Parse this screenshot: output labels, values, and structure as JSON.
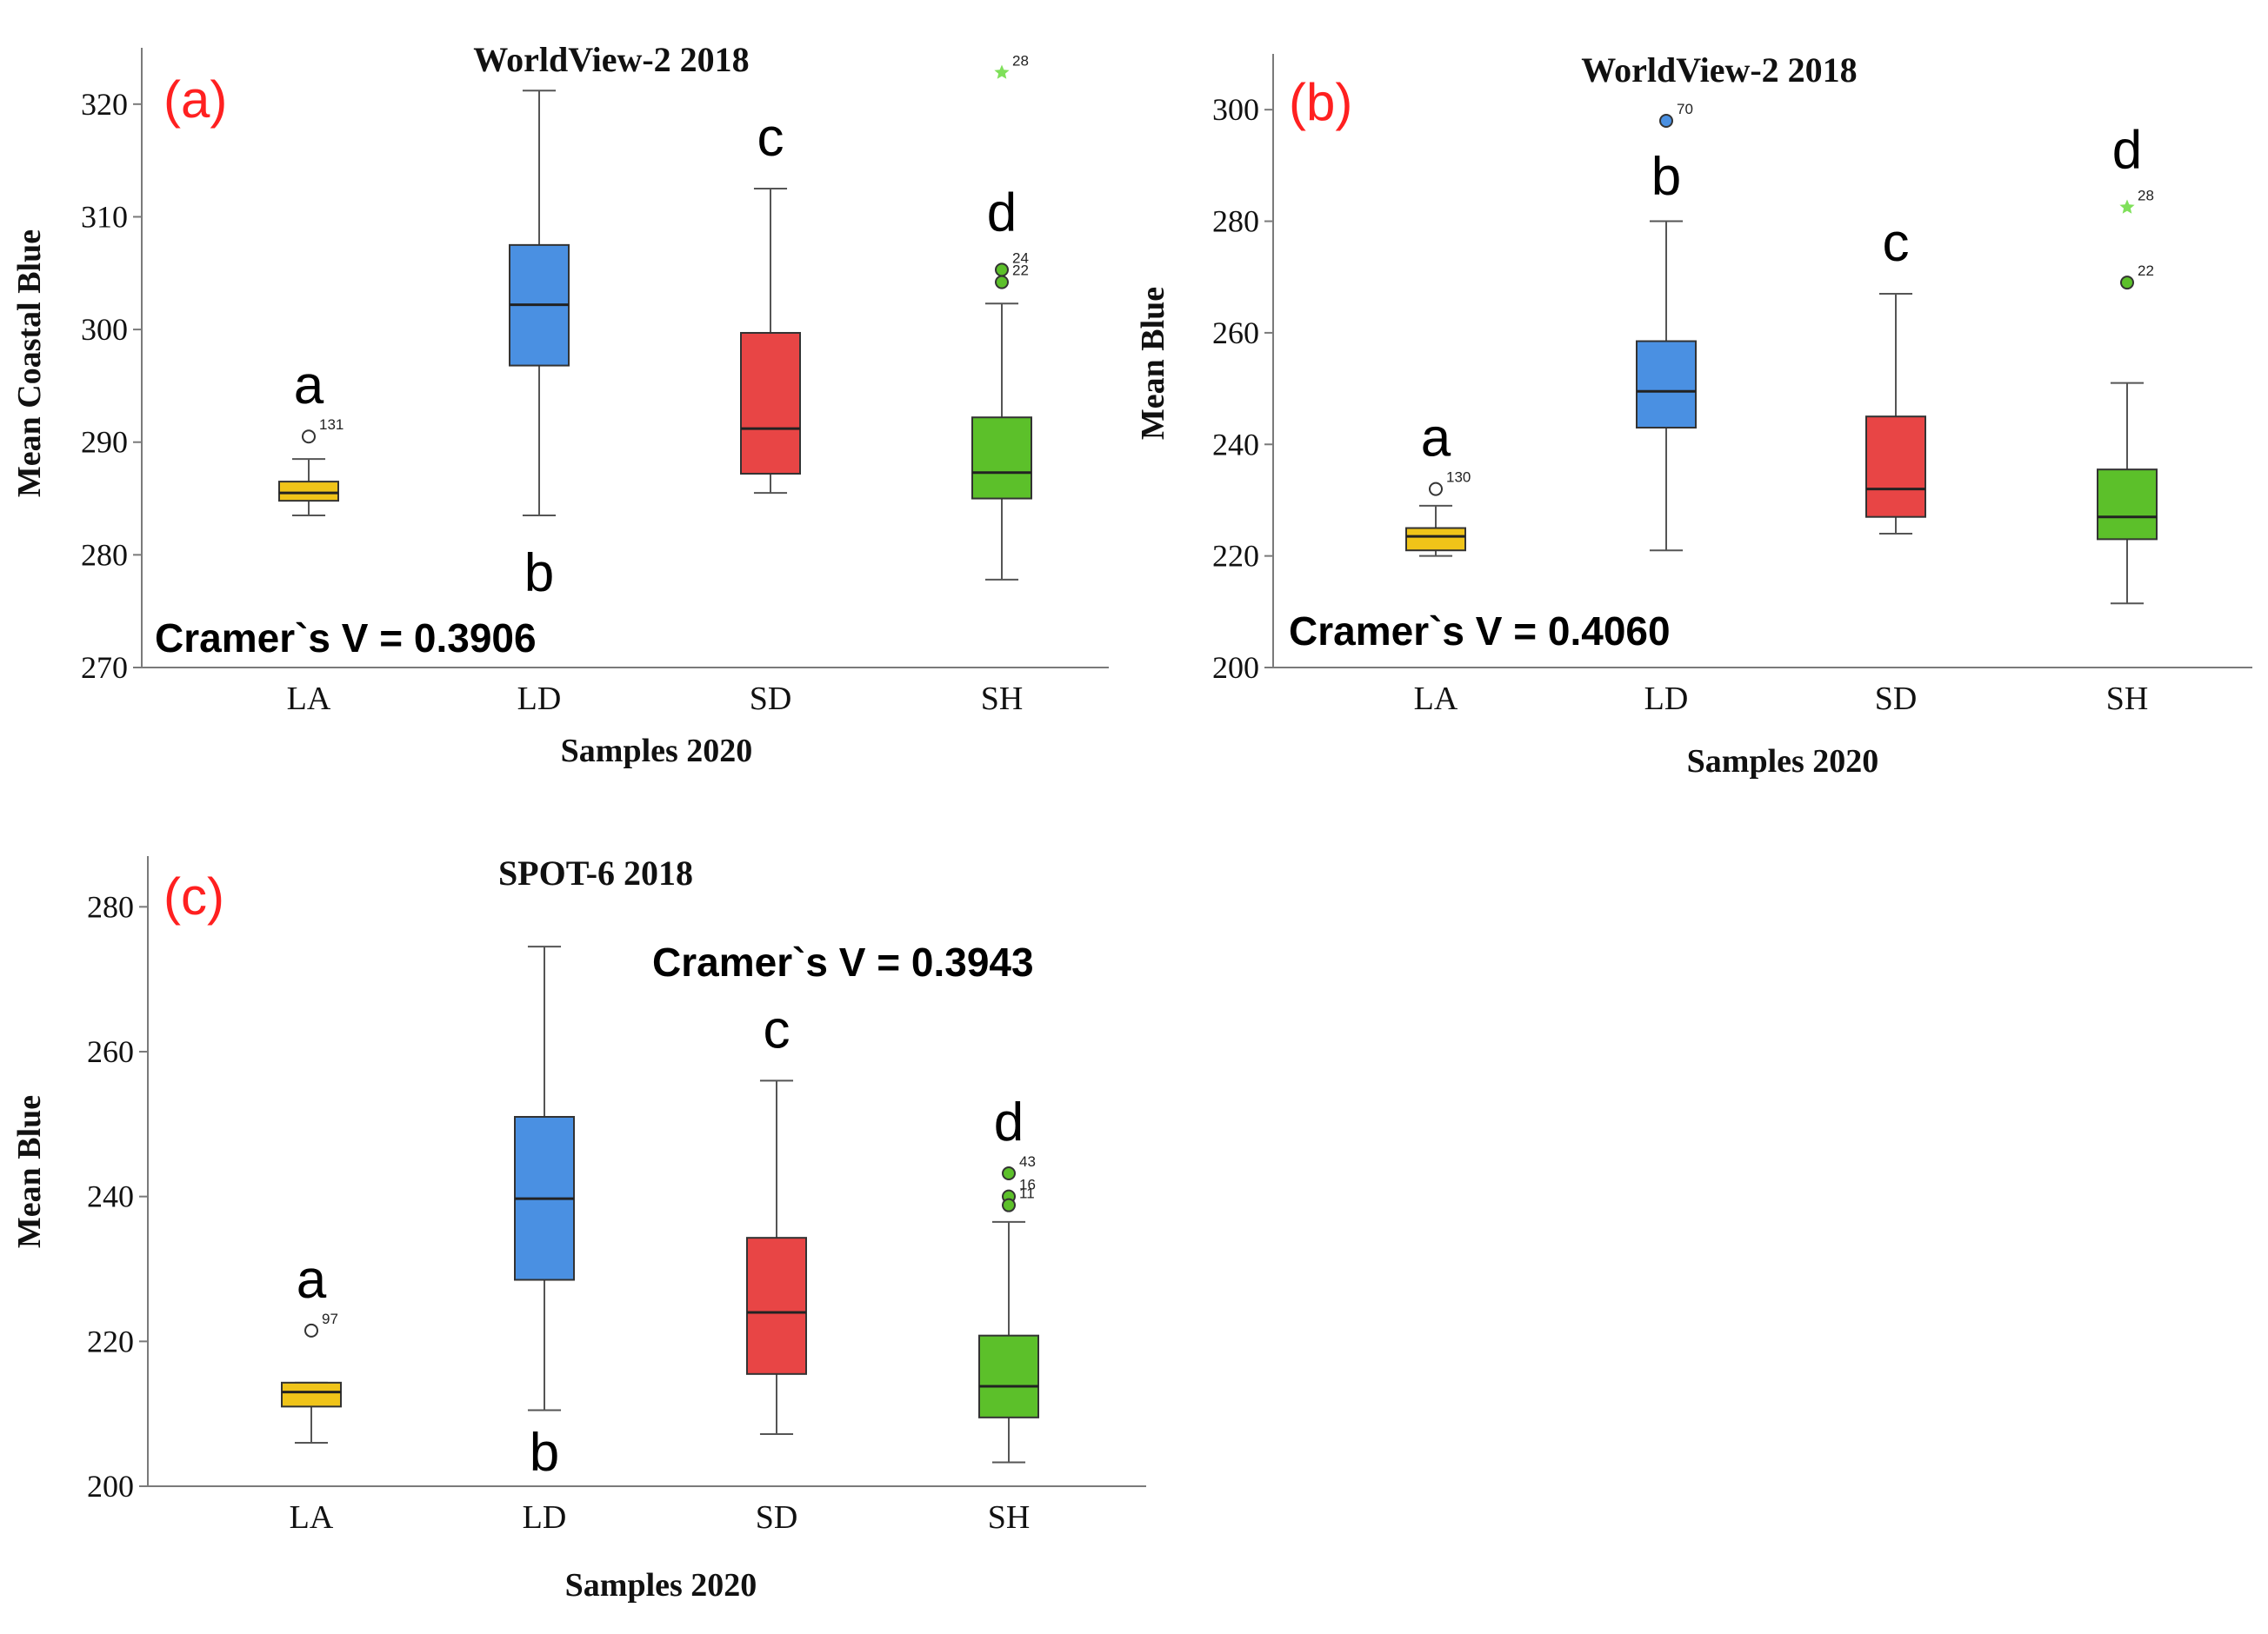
{
  "figure": {
    "colors": {
      "LA": "#f0c419",
      "LD": "#4a90e2",
      "SD": "#e84545",
      "SH": "#5cc02a",
      "axis": "#7a7a7a",
      "whisker": "#555555",
      "median": "#222222",
      "panel_label": "#ff2020",
      "text": "#111111"
    }
  },
  "chart_data": [
    {
      "type": "boxplot",
      "panel_label": "(a)",
      "title": "WorldView-2 2018",
      "xlabel": "Samples 2020",
      "ylabel": "Mean Coastal Blue",
      "ylim": [
        270,
        325
      ],
      "yticks": [
        270,
        280,
        290,
        300,
        310,
        320
      ],
      "categories": [
        "LA",
        "LD",
        "SD",
        "SH"
      ],
      "boxes": [
        {
          "category": "LA",
          "min": 283.5,
          "q1": 284.8,
          "median": 285.5,
          "q3": 286.5,
          "max": 288.5
        },
        {
          "category": "LD",
          "min": 283.5,
          "q1": 296.8,
          "median": 302.2,
          "q3": 307.5,
          "max": 321.2
        },
        {
          "category": "SD",
          "min": 285.5,
          "q1": 287.2,
          "median": 291.2,
          "q3": 299.7,
          "max": 312.5
        },
        {
          "category": "SH",
          "min": 277.8,
          "q1": 285.0,
          "median": 287.3,
          "q3": 292.2,
          "max": 302.3
        }
      ],
      "outliers": [
        {
          "category": "LA",
          "value": 290.5,
          "label": "131",
          "marker": "circle"
        },
        {
          "category": "SH",
          "value": 305.3,
          "label": "24",
          "marker": "circle"
        },
        {
          "category": "SH",
          "value": 304.2,
          "label": "22",
          "marker": "circle"
        },
        {
          "category": "SH",
          "value": 322.8,
          "label": "28",
          "marker": "star"
        }
      ],
      "group_letters": [
        {
          "category": "LA",
          "letter": "a",
          "position": "above"
        },
        {
          "category": "LD",
          "letter": "b",
          "position": "below"
        },
        {
          "category": "SD",
          "letter": "c",
          "position": "above"
        },
        {
          "category": "SH",
          "letter": "d",
          "position": "above"
        }
      ],
      "annotation": "Cramer`s V = 0.3906"
    },
    {
      "type": "boxplot",
      "panel_label": "(b)",
      "title": "WorldView-2 2018",
      "xlabel": "Samples 2020",
      "ylabel": "Mean Blue",
      "ylim": [
        200,
        310
      ],
      "yticks": [
        200,
        220,
        240,
        260,
        280,
        300
      ],
      "categories": [
        "LA",
        "LD",
        "SD",
        "SH"
      ],
      "boxes": [
        {
          "category": "LA",
          "min": 220,
          "q1": 221,
          "median": 223.5,
          "q3": 225,
          "max": 229
        },
        {
          "category": "LD",
          "min": 221,
          "q1": 243,
          "median": 249.5,
          "q3": 258.5,
          "max": 280
        },
        {
          "category": "SD",
          "min": 224,
          "q1": 227,
          "median": 232,
          "q3": 245,
          "max": 267
        },
        {
          "category": "SH",
          "min": 211.5,
          "q1": 223,
          "median": 227,
          "q3": 235.5,
          "max": 251
        }
      ],
      "outliers": [
        {
          "category": "LA",
          "value": 232,
          "label": "130",
          "marker": "circle"
        },
        {
          "category": "LD",
          "value": 298,
          "label": "70",
          "marker": "circle"
        },
        {
          "category": "SH",
          "value": 269,
          "label": "22",
          "marker": "circle"
        },
        {
          "category": "SH",
          "value": 282.5,
          "label": "28",
          "marker": "star"
        }
      ],
      "group_letters": [
        {
          "category": "LA",
          "letter": "a",
          "position": "above"
        },
        {
          "category": "LD",
          "letter": "b",
          "position": "above"
        },
        {
          "category": "SD",
          "letter": "c",
          "position": "above"
        },
        {
          "category": "SH",
          "letter": "d",
          "position": "above"
        }
      ],
      "annotation": "Cramer`s V = 0.4060"
    },
    {
      "type": "boxplot",
      "panel_label": "(c)",
      "title": "SPOT-6 2018",
      "xlabel": "Samples 2020",
      "ylabel": "Mean Blue",
      "ylim": [
        200,
        287
      ],
      "yticks": [
        200,
        220,
        240,
        260,
        280
      ],
      "categories": [
        "LA",
        "LD",
        "SD",
        "SH"
      ],
      "boxes": [
        {
          "category": "LA",
          "min": 206,
          "q1": 211,
          "median": 213,
          "q3": 214.3,
          "max": 214.3
        },
        {
          "category": "LD",
          "min": 210.5,
          "q1": 228.5,
          "median": 239.7,
          "q3": 251,
          "max": 274.5
        },
        {
          "category": "SD",
          "min": 207.2,
          "q1": 215.5,
          "median": 224,
          "q3": 234.3,
          "max": 256
        },
        {
          "category": "SH",
          "min": 203.3,
          "q1": 209.5,
          "median": 213.8,
          "q3": 220.8,
          "max": 236.5
        }
      ],
      "outliers": [
        {
          "category": "LA",
          "value": 221.5,
          "label": "97",
          "marker": "circle"
        },
        {
          "category": "SH",
          "value": 243.2,
          "label": "43",
          "marker": "circle"
        },
        {
          "category": "SH",
          "value": 240.0,
          "label": "16",
          "marker": "circle"
        },
        {
          "category": "SH",
          "value": 238.8,
          "label": "11",
          "marker": "circle"
        }
      ],
      "group_letters": [
        {
          "category": "LA",
          "letter": "a",
          "position": "above"
        },
        {
          "category": "LD",
          "letter": "b",
          "position": "below"
        },
        {
          "category": "SD",
          "letter": "c",
          "position": "above"
        },
        {
          "category": "SH",
          "letter": "d",
          "position": "above"
        }
      ],
      "annotation": "Cramer`s V = 0.3943"
    }
  ]
}
